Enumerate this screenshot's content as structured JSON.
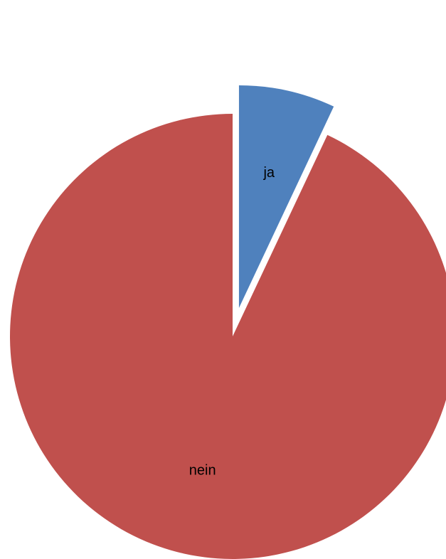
{
  "chart_data": {
    "type": "pie",
    "exploded": true,
    "start_angle_deg": 0,
    "direction": "clockwise",
    "slices": [
      {
        "label": "ja",
        "value": 7,
        "color": "#4f81bd",
        "exploded": true
      },
      {
        "label": "nein",
        "value": 93,
        "color": "#c0504d",
        "exploded": false
      }
    ],
    "title": "",
    "legend": "none"
  }
}
